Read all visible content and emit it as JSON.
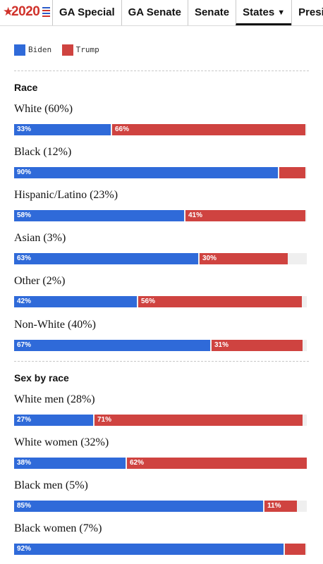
{
  "nav": {
    "logo_year": "2020",
    "tabs": [
      {
        "label": "GA Special",
        "active": false
      },
      {
        "label": "GA Senate",
        "active": false
      },
      {
        "label": "Senate",
        "active": false
      },
      {
        "label": "States",
        "active": true
      },
      {
        "label": "Presider",
        "active": false
      }
    ]
  },
  "legend": [
    {
      "label": "Biden",
      "color": "#2f6ad9"
    },
    {
      "label": "Trump",
      "color": "#cf4340"
    }
  ],
  "sections": [
    {
      "title": "Race",
      "rows": [
        {
          "label": "White (60%)",
          "biden": 33,
          "trump": 66,
          "biden_text": "33%",
          "trump_text": "66%"
        },
        {
          "label": "Black (12%)",
          "biden": 90,
          "trump": 9,
          "biden_text": "90%",
          "trump_text": ""
        },
        {
          "label": "Hispanic/Latino (23%)",
          "biden": 58,
          "trump": 41,
          "biden_text": "58%",
          "trump_text": "41%"
        },
        {
          "label": "Asian (3%)",
          "biden": 63,
          "trump": 30,
          "biden_text": "63%",
          "trump_text": "30%"
        },
        {
          "label": "Other (2%)",
          "biden": 42,
          "trump": 56,
          "biden_text": "42%",
          "trump_text": "56%"
        },
        {
          "label": "Non-White (40%)",
          "biden": 67,
          "trump": 31,
          "biden_text": "67%",
          "trump_text": "31%"
        }
      ]
    },
    {
      "title": "Sex by race",
      "rows": [
        {
          "label": "White men (28%)",
          "biden": 27,
          "trump": 71,
          "biden_text": "27%",
          "trump_text": "71%"
        },
        {
          "label": "White women (32%)",
          "biden": 38,
          "trump": 62,
          "biden_text": "38%",
          "trump_text": "62%"
        },
        {
          "label": "Black men (5%)",
          "biden": 85,
          "trump": 11,
          "biden_text": "85%",
          "trump_text": "11%"
        },
        {
          "label": "Black women (7%)",
          "biden": 92,
          "trump": 7,
          "biden_text": "92%",
          "trump_text": ""
        }
      ]
    }
  ]
}
